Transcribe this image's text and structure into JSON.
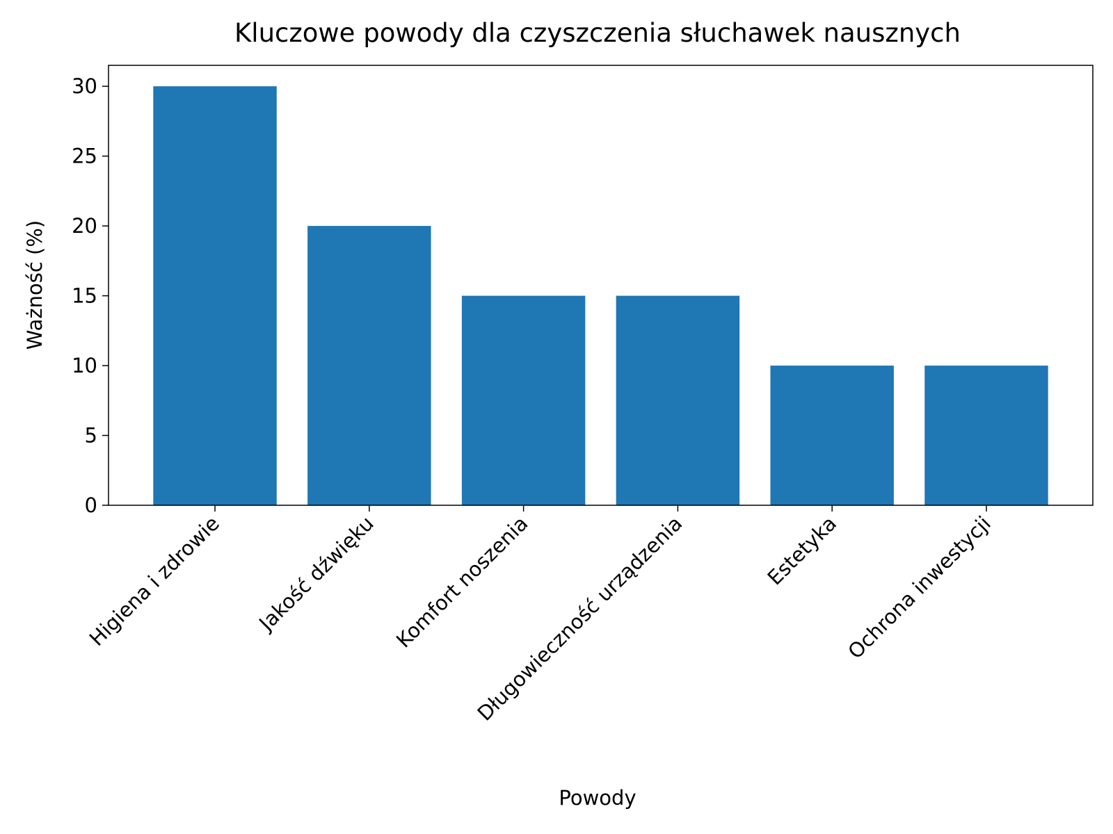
{
  "chart_data": {
    "type": "bar",
    "title": "Kluczowe powody dla czyszczenia słuchawek nausznych",
    "x_label": "Powody",
    "y_label": "Ważność (%)",
    "categories": [
      "Higiena i zdrowie",
      "Jakość dźwięku",
      "Komfort noszenia",
      "Długowieczność urządzenia",
      "Estetyka",
      "Ochrona inwestycji"
    ],
    "values": [
      30,
      20,
      15,
      15,
      10,
      10
    ],
    "color": "#1f77b4",
    "ylim": [
      0,
      31.5
    ],
    "yticks": [
      0,
      5,
      10,
      15,
      20,
      25,
      30
    ],
    "grid": false
  }
}
